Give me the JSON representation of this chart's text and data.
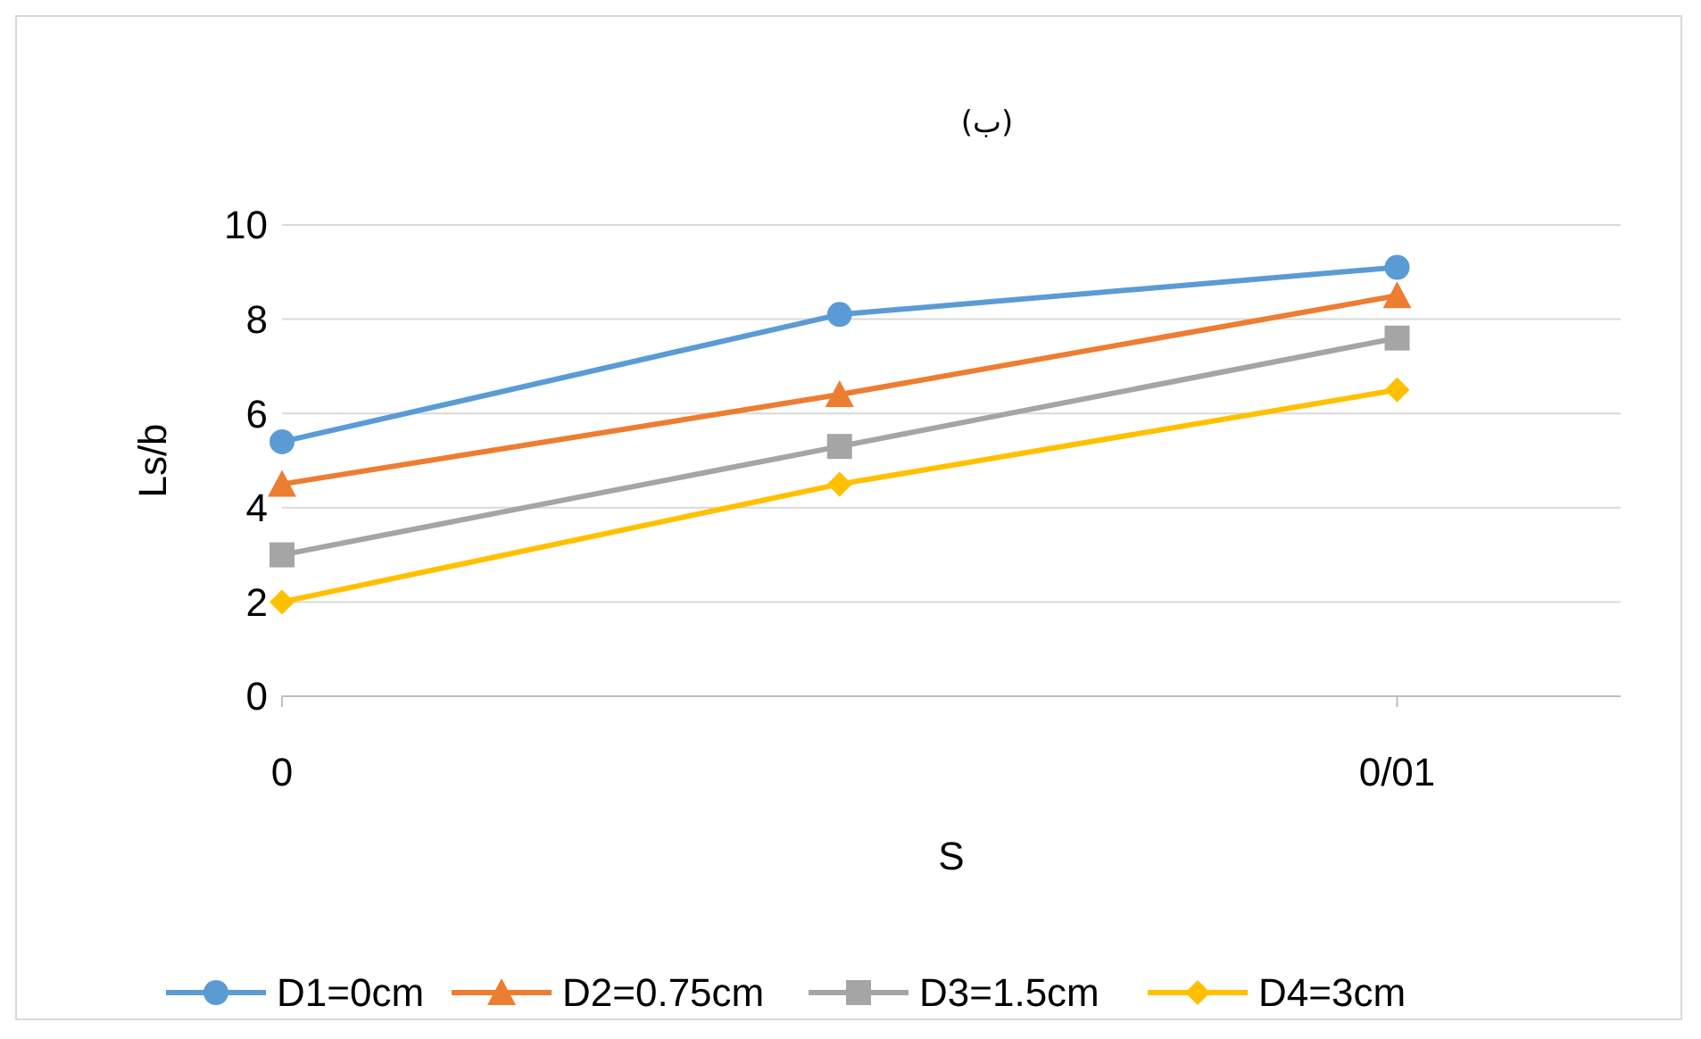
{
  "chart_data": {
    "type": "line",
    "title": "(ب)",
    "xlabel": "S",
    "ylabel": "Ls/b",
    "categories": [
      "0",
      null,
      "0/01"
    ],
    "ylim": [
      0,
      10
    ],
    "yticks": [
      0,
      2,
      4,
      6,
      8,
      10
    ],
    "grid": "y",
    "legend": "bottom",
    "line_style": "solid",
    "series": [
      {
        "name": "D1=0cm",
        "color": "#5b9bd5",
        "marker": "circle",
        "values": [
          5.4,
          8.1,
          9.1
        ]
      },
      {
        "name": "D2=0.75cm",
        "color": "#ed7d31",
        "marker": "triangle",
        "values": [
          4.5,
          6.4,
          8.5
        ]
      },
      {
        "name": "D3=1.5cm",
        "color": "#a5a5a5",
        "marker": "square",
        "values": [
          3.0,
          5.3,
          7.6
        ]
      },
      {
        "name": "D4=3cm",
        "color": "#ffc000",
        "marker": "diamond",
        "values": [
          2.0,
          4.5,
          6.5
        ]
      }
    ]
  }
}
